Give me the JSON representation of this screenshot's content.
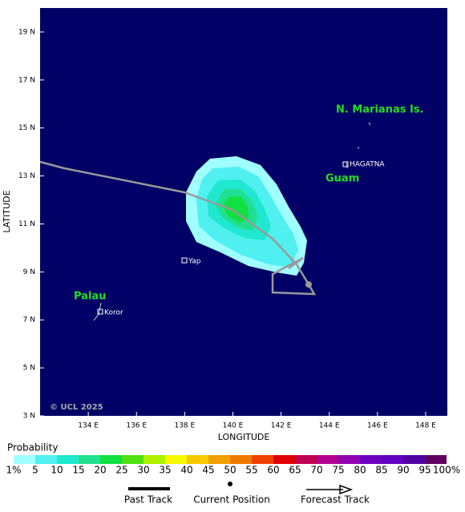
{
  "map": {
    "x_axis_label": "LONGITUDE",
    "y_axis_label": "LATITUDE",
    "xlim": [
      132,
      148.9
    ],
    "ylim": [
      3,
      20
    ],
    "xticks": [
      {
        "value": 134,
        "label": "134 E"
      },
      {
        "value": 136,
        "label": "136 E"
      },
      {
        "value": 138,
        "label": "138 E"
      },
      {
        "value": 140,
        "label": "140 E"
      },
      {
        "value": 142,
        "label": "142 E"
      },
      {
        "value": 144,
        "label": "144 E"
      },
      {
        "value": 146,
        "label": "146 E"
      },
      {
        "value": 148,
        "label": "148 E"
      }
    ],
    "yticks": [
      {
        "value": 3,
        "label": "3 N"
      },
      {
        "value": 5,
        "label": "5 N"
      },
      {
        "value": 7,
        "label": "7 N"
      },
      {
        "value": 9,
        "label": "9 N"
      },
      {
        "value": 11,
        "label": "11 N"
      },
      {
        "value": 13,
        "label": "13 N"
      },
      {
        "value": 15,
        "label": "15 N"
      },
      {
        "value": 17,
        "label": "17 N"
      },
      {
        "value": 19,
        "label": "19 N"
      }
    ],
    "regions": [
      "N. Marianas Is.",
      "Guam",
      "Palau"
    ],
    "places": [
      "HAGATNA",
      "Yap",
      "Koror"
    ],
    "copyright": "© UCL 2025"
  },
  "legend": {
    "title": "Probability",
    "labels": [
      "1%",
      "5",
      "10",
      "15",
      "20",
      "25",
      "30",
      "35",
      "40",
      "45",
      "50",
      "55",
      "60",
      "65",
      "70",
      "75",
      "80",
      "85",
      "90",
      "95",
      "100%"
    ],
    "colors": [
      "#a0ffff",
      "#50f0f0",
      "#20e8d0",
      "#20e090",
      "#10e040",
      "#50e010",
      "#b0f000",
      "#f8f800",
      "#f8c800",
      "#f0a000",
      "#f07800",
      "#f04000",
      "#e00000",
      "#c00050",
      "#b00090",
      "#9000b0",
      "#7000c0",
      "#6000c0",
      "#5000a0",
      "#600060"
    ],
    "tracks": [
      "Past Track",
      "Current Position",
      "Forecast Track"
    ]
  }
}
